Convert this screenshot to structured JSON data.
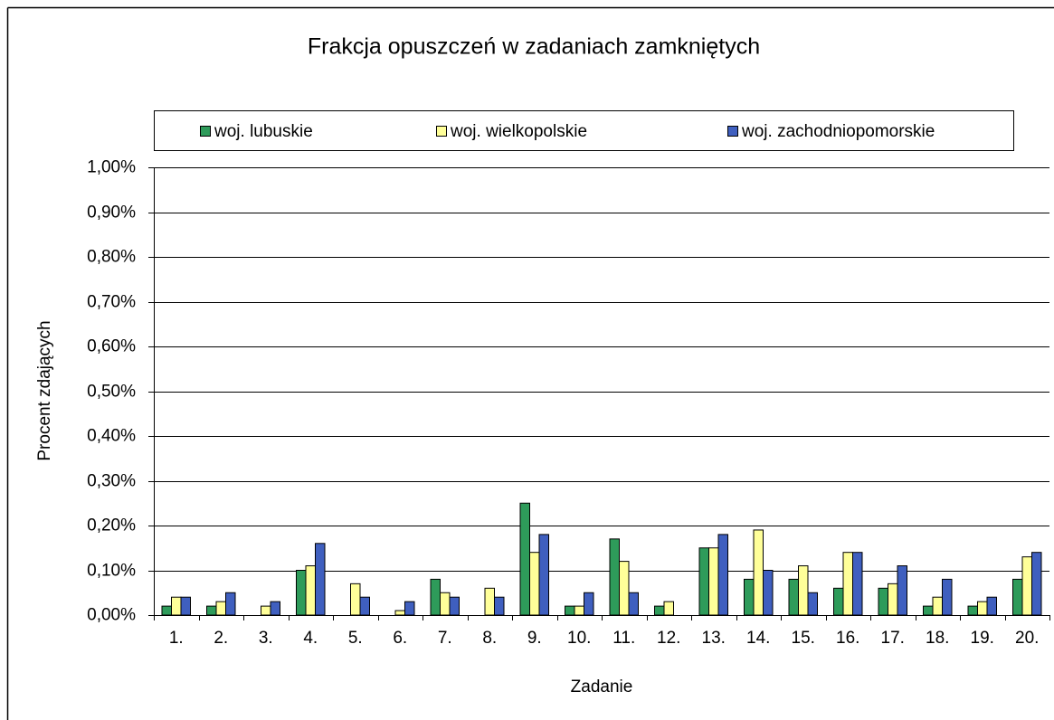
{
  "chart_data": {
    "type": "bar",
    "title": "Frakcja opuszczeń w zadaniach zamkniętych",
    "xlabel": "Zadanie",
    "ylabel": "Procent zdających",
    "categories": [
      "1.",
      "2.",
      "3.",
      "4.",
      "5.",
      "6.",
      "7.",
      "8.",
      "9.",
      "10.",
      "11.",
      "12.",
      "13.",
      "14.",
      "15.",
      "16.",
      "17.",
      "18.",
      "19.",
      "20."
    ],
    "series": [
      {
        "name": "woj. lubuskie",
        "color": "#2e9b5a",
        "values": [
          0.02,
          0.02,
          0,
          0.1,
          0,
          0,
          0.08,
          0,
          0.25,
          0.02,
          0.17,
          0.02,
          0.15,
          0.08,
          0.08,
          0.06,
          0.06,
          0.02,
          0.02,
          0.08
        ]
      },
      {
        "name": "woj. wielkopolskie",
        "color": "#ffff99",
        "values": [
          0.04,
          0.03,
          0.02,
          0.11,
          0.07,
          0.01,
          0.05,
          0.06,
          0.14,
          0.02,
          0.12,
          0.03,
          0.15,
          0.19,
          0.11,
          0.14,
          0.07,
          0.04,
          0.03,
          0.13
        ]
      },
      {
        "name": "woj. zachodniopomorskie",
        "color": "#3f5fbf",
        "values": [
          0.04,
          0.05,
          0.03,
          0.16,
          0.04,
          0.03,
          0.04,
          0.04,
          0.18,
          0.05,
          0.05,
          0,
          0.18,
          0.1,
          0.05,
          0.14,
          0.11,
          0.08,
          0.04,
          0.14
        ]
      }
    ],
    "ylim": [
      0,
      1
    ],
    "yticks": [
      {
        "value": 0,
        "label": "0,00%"
      },
      {
        "value": 0.1,
        "label": "0,10%"
      },
      {
        "value": 0.2,
        "label": "0,20%"
      },
      {
        "value": 0.3,
        "label": "0,30%"
      },
      {
        "value": 0.4,
        "label": "0,40%"
      },
      {
        "value": 0.5,
        "label": "0,50%"
      },
      {
        "value": 0.6,
        "label": "0,60%"
      },
      {
        "value": 0.7,
        "label": "0,70%"
      },
      {
        "value": 0.8,
        "label": "0,80%"
      },
      {
        "value": 0.9,
        "label": "0,90%"
      },
      {
        "value": 1,
        "label": "1,00%"
      }
    ],
    "grid": true,
    "legend": "top"
  }
}
